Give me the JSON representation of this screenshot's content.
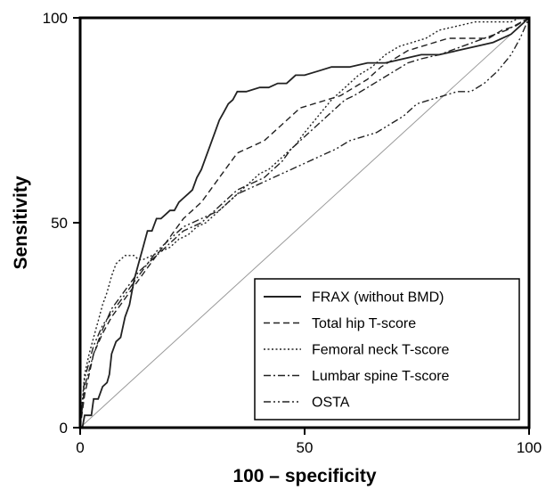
{
  "chart_data": {
    "type": "line",
    "xlabel": "100 – specificity",
    "ylabel": "Sensitivity",
    "xlim": [
      0,
      100
    ],
    "ylim": [
      0,
      100
    ],
    "xticks": [
      "0",
      "50",
      "100"
    ],
    "yticks": [
      "0",
      "50",
      "100"
    ],
    "grid": false,
    "legend_position": "bottom-right",
    "reference_line": {
      "x": [
        0,
        100
      ],
      "y": [
        0,
        100
      ]
    },
    "series": [
      {
        "name": "FRAX (without BMD)",
        "dash": "solid",
        "x": [
          0,
          0.5,
          1,
          2,
          2.5,
          3,
          4,
          5,
          6,
          6.5,
          7,
          8,
          9,
          10,
          11,
          12,
          13,
          14,
          15,
          16,
          17,
          18,
          19,
          20,
          21,
          22,
          23,
          24,
          25,
          26,
          27,
          28,
          29,
          30,
          31,
          32,
          33,
          34,
          35,
          37,
          40,
          42,
          44,
          46,
          48,
          50,
          53,
          56,
          60,
          64,
          68,
          72,
          76,
          80,
          84,
          88,
          92,
          96,
          98,
          100
        ],
        "y": [
          0,
          0,
          3,
          3,
          3,
          7,
          7,
          10,
          11,
          13,
          18,
          21,
          22,
          27,
          30,
          36,
          40,
          44,
          48,
          48,
          51,
          51,
          52,
          53,
          53,
          55,
          56,
          57,
          58,
          61,
          63,
          66,
          69,
          72,
          75,
          77,
          79,
          80,
          82,
          82,
          83,
          83,
          84,
          84,
          86,
          86,
          87,
          88,
          88,
          89,
          89,
          90,
          91,
          91,
          92,
          93,
          94,
          96,
          98,
          100
        ]
      },
      {
        "name": "Total hip T-score",
        "dash": "dashed",
        "x": [
          0,
          1,
          2,
          3,
          5,
          7,
          9,
          11,
          13,
          15,
          17,
          19,
          21,
          23,
          25,
          27,
          29,
          31,
          33,
          35,
          37,
          39,
          41,
          43,
          45,
          47,
          49,
          52,
          55,
          58,
          61,
          64,
          67,
          70,
          73,
          76,
          79,
          82,
          85,
          88,
          91,
          94,
          97,
          100
        ],
        "y": [
          0,
          8,
          13,
          18,
          23,
          27,
          30,
          33,
          36,
          39,
          42,
          45,
          48,
          51,
          53,
          55,
          58,
          61,
          64,
          67,
          68,
          69,
          70,
          72,
          74,
          76,
          78,
          79,
          80,
          81,
          83,
          85,
          88,
          90,
          92,
          93,
          94,
          95,
          95,
          95,
          95,
          97,
          98,
          100
        ]
      },
      {
        "name": "Femoral neck T-score",
        "dash": "dotted",
        "x": [
          0,
          1,
          2,
          3,
          4,
          5,
          6,
          7,
          8,
          9,
          10,
          11,
          12,
          13,
          14,
          16,
          18,
          20,
          22,
          24,
          26,
          28,
          30,
          32,
          34,
          36,
          38,
          40,
          42,
          44,
          46,
          48,
          50,
          53,
          56,
          59,
          62,
          65,
          68,
          71,
          74,
          77,
          80,
          84,
          88,
          92,
          96,
          98,
          100
        ],
        "y": [
          0,
          13,
          18,
          22,
          26,
          30,
          33,
          37,
          40,
          41,
          42,
          42,
          42,
          41,
          41,
          42,
          43,
          44,
          46,
          47,
          49,
          50,
          52,
          54,
          56,
          58,
          60,
          62,
          63,
          65,
          67,
          69,
          72,
          76,
          80,
          83,
          86,
          88,
          91,
          93,
          94,
          95,
          97,
          98,
          99,
          99,
          99,
          100,
          100
        ]
      },
      {
        "name": "Lumbar spine T-score",
        "dash": "dashdot",
        "x": [
          0,
          1,
          2,
          3,
          5,
          7,
          9,
          11,
          13,
          15,
          17,
          19,
          21,
          23,
          25,
          27,
          29,
          31,
          33,
          35,
          37,
          39,
          41,
          43,
          45,
          47,
          49,
          51,
          53,
          55,
          57,
          59,
          61,
          64,
          67,
          70,
          73,
          76,
          80,
          85,
          90,
          95,
          100
        ],
        "y": [
          0,
          10,
          14,
          18,
          24,
          29,
          32,
          35,
          38,
          40,
          42,
          44,
          46,
          48,
          49,
          50,
          52,
          54,
          56,
          58,
          59,
          60,
          61,
          63,
          65,
          68,
          70,
          72,
          74,
          76,
          78,
          80,
          81,
          83,
          85,
          87,
          89,
          90,
          91,
          93,
          95,
          97,
          100
        ]
      },
      {
        "name": "OSTA",
        "dash": "dashdotdot",
        "x": [
          0,
          1,
          2,
          3,
          5,
          7,
          9,
          11,
          13,
          15,
          17,
          19,
          21,
          23,
          25,
          27,
          29,
          31,
          33,
          35,
          37,
          39,
          41,
          43,
          45,
          47,
          49,
          51,
          53,
          55,
          57,
          60,
          63,
          66,
          69,
          72,
          75,
          78,
          81,
          84,
          87,
          90,
          93,
          96,
          98,
          100
        ],
        "y": [
          0,
          12,
          16,
          20,
          25,
          28,
          31,
          34,
          37,
          40,
          43,
          45,
          47,
          49,
          50,
          51,
          52,
          53,
          55,
          57,
          58,
          59,
          60,
          61,
          62,
          63,
          64,
          65,
          66,
          67,
          68,
          70,
          71,
          72,
          74,
          76,
          79,
          80,
          81,
          82,
          82,
          84,
          87,
          91,
          95,
          100
        ]
      }
    ]
  }
}
